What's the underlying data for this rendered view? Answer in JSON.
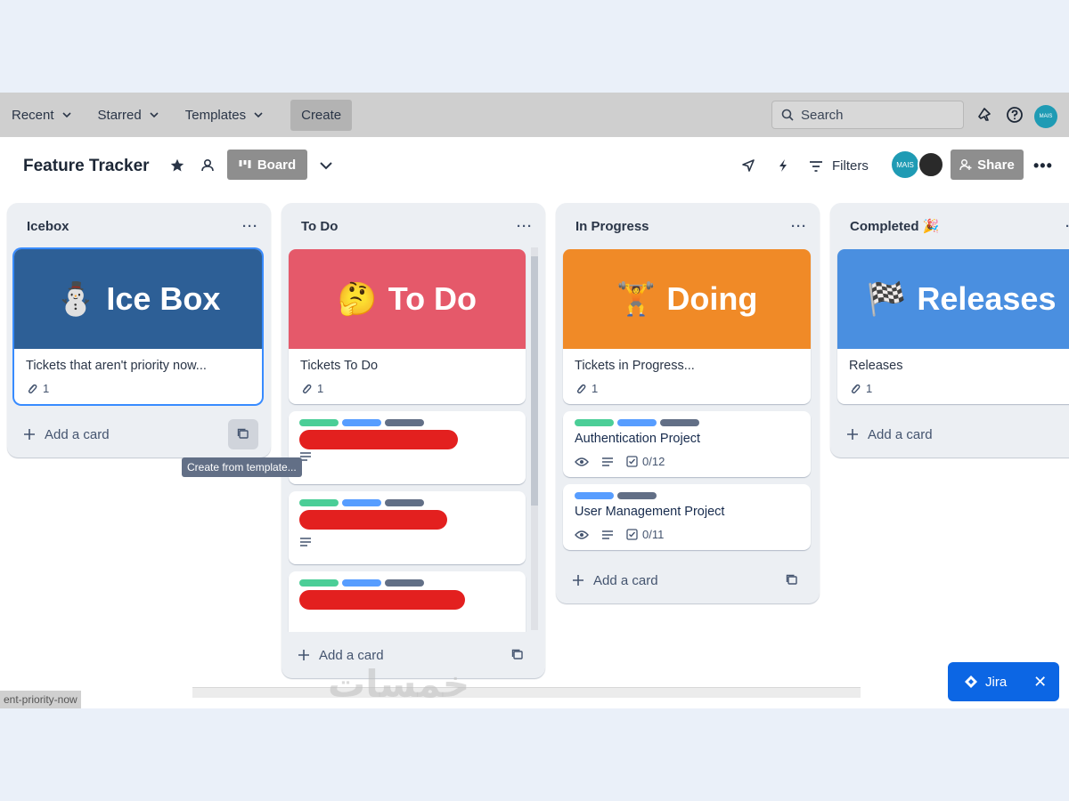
{
  "nav": {
    "recent": "Recent",
    "starred": "Starred",
    "templates": "Templates",
    "create": "Create",
    "search_placeholder": "Search",
    "avatar": "MAIS"
  },
  "board": {
    "title": "Feature Tracker",
    "view": "Board",
    "filters": "Filters",
    "share": "Share",
    "member_avatar": "MAIS"
  },
  "lists": [
    {
      "name": "Icebox",
      "cover_title": "Ice Box",
      "cover_emoji": "⛄",
      "cover_color": "#2d5f96",
      "card_title": "Tickets that aren't priority now...",
      "attachments": "1",
      "add_card": "Add a card"
    },
    {
      "name": "To Do",
      "cover_title": "To Do",
      "cover_emoji": "🤔",
      "cover_color": "#e5596a",
      "card_title": "Tickets To Do",
      "attachments": "1",
      "add_card": "Add a card"
    },
    {
      "name": "In Progress",
      "cover_title": "Doing",
      "cover_emoji": "🏋",
      "cover_color": "#f08a27",
      "card_title": "Tickets in Progress...",
      "attachments": "1",
      "cards": [
        {
          "title": "Authentication Project",
          "checklist": "0/12"
        },
        {
          "title": "User Management Project",
          "checklist": "0/11"
        }
      ],
      "add_card": "Add a card"
    },
    {
      "name": "Completed",
      "name_emoji": "🎉",
      "cover_title": "Releases",
      "cover_emoji": "🏁",
      "cover_color": "#4a8fe0",
      "card_title": "Releases",
      "attachments": "1",
      "add_card": "Add a card"
    }
  ],
  "label_colors": {
    "green": "#4bce97",
    "blue": "#579dff",
    "gray": "#626f86"
  },
  "tooltip": "Create from template...",
  "url_hint": "ent-priority-now",
  "jira": "Jira",
  "watermark": "خمسات"
}
